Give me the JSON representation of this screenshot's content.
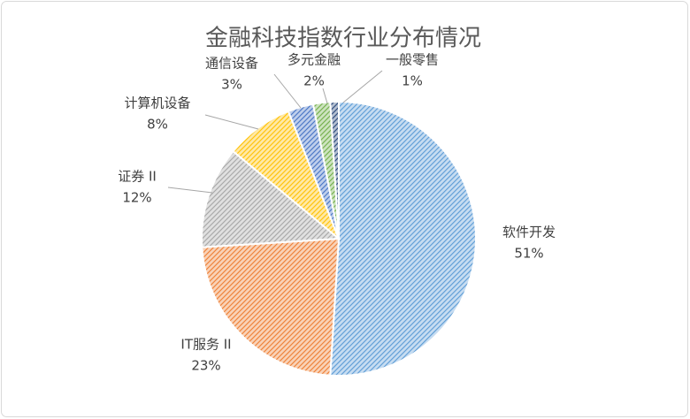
{
  "chart_data": {
    "type": "pie",
    "title": "金融科技指数行业分布情况",
    "categories": [
      "软件开发",
      "IT服务 II",
      "证券 II",
      "计算机设备",
      "通信设备",
      "多元金融",
      "一般零售"
    ],
    "values": [
      51,
      23,
      12,
      8,
      3,
      2,
      1
    ],
    "value_labels": [
      "51%",
      "23%",
      "12%",
      "8%",
      "3%",
      "2%",
      "1%"
    ],
    "colors": [
      "#5b9bd5",
      "#ed7d31",
      "#a5a5a5",
      "#ffc000",
      "#4472c4",
      "#70ad47",
      "#264478"
    ]
  }
}
